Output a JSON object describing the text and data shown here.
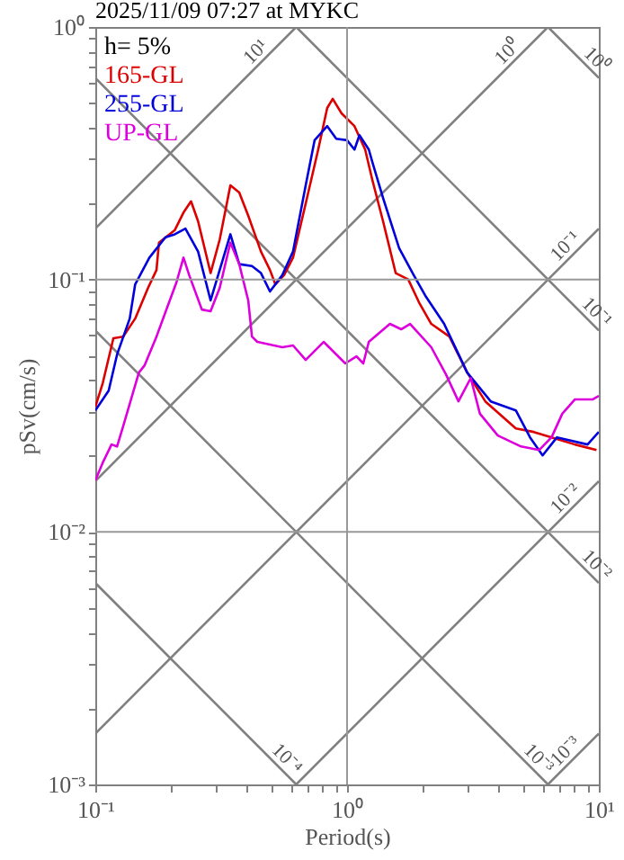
{
  "chart_data": {
    "type": "line",
    "title": "2025/11/09 07:27 at MYKC",
    "xlabel": "Period(s)",
    "ylabel": "pSv(cm/s)",
    "log": "xy",
    "grid": true,
    "legend": "top left",
    "xlim": [
      0.1,
      10
    ],
    "ylim": [
      0.001,
      1
    ],
    "xticks": [
      {
        "value": 0.1,
        "label": "10⁻¹"
      },
      {
        "value": 0.2,
        "label": null
      },
      {
        "value": 0.3,
        "label": null
      },
      {
        "value": 0.4,
        "label": null
      },
      {
        "value": 0.5,
        "label": null
      },
      {
        "value": 0.6,
        "label": null
      },
      {
        "value": 0.7,
        "label": null
      },
      {
        "value": 0.8,
        "label": null
      },
      {
        "value": 0.9,
        "label": null
      },
      {
        "value": 1,
        "label": "10⁰"
      },
      {
        "value": 2,
        "label": null
      },
      {
        "value": 3,
        "label": null
      },
      {
        "value": 4,
        "label": null
      },
      {
        "value": 5,
        "label": null
      },
      {
        "value": 6,
        "label": null
      },
      {
        "value": 7,
        "label": null
      },
      {
        "value": 8,
        "label": null
      },
      {
        "value": 9,
        "label": null
      },
      {
        "value": 10,
        "label": "10¹"
      }
    ],
    "yticks": [
      {
        "value": 0.001,
        "label": "10⁻³"
      },
      {
        "value": 0.002,
        "label": null
      },
      {
        "value": 0.003,
        "label": null
      },
      {
        "value": 0.004,
        "label": null
      },
      {
        "value": 0.005,
        "label": null
      },
      {
        "value": 0.006,
        "label": null
      },
      {
        "value": 0.007,
        "label": null
      },
      {
        "value": 0.008,
        "label": null
      },
      {
        "value": 0.009,
        "label": null
      },
      {
        "value": 0.01,
        "label": "10⁻²"
      },
      {
        "value": 0.02,
        "label": null
      },
      {
        "value": 0.03,
        "label": null
      },
      {
        "value": 0.04,
        "label": null
      },
      {
        "value": 0.05,
        "label": null
      },
      {
        "value": 0.06,
        "label": null
      },
      {
        "value": 0.07,
        "label": null
      },
      {
        "value": 0.08,
        "label": null
      },
      {
        "value": 0.09,
        "label": null
      },
      {
        "value": 0.1,
        "label": "10⁻¹"
      },
      {
        "value": 0.2,
        "label": null
      },
      {
        "value": 0.3,
        "label": null
      },
      {
        "value": 0.4,
        "label": null
      },
      {
        "value": 0.5,
        "label": null
      },
      {
        "value": 0.6,
        "label": null
      },
      {
        "value": 0.7,
        "label": null
      },
      {
        "value": 0.8,
        "label": null
      },
      {
        "value": 0.9,
        "label": null
      },
      {
        "value": 1,
        "label": "10⁰"
      }
    ],
    "series": [
      {
        "color": "#808080",
        "x": [
          0.1,
          0.628
        ],
        "values": [
          0.159,
          1
        ]
      },
      {
        "color": "#808080",
        "x": [
          0.1,
          6.28
        ],
        "values": [
          0.0159,
          1
        ]
      },
      {
        "color": "#808080",
        "x": [
          0.1,
          10
        ],
        "values": [
          0.00159,
          0.159
        ]
      },
      {
        "color": "#808080",
        "x": [
          0.628,
          10
        ],
        "values": [
          0.001,
          0.0159
        ]
      },
      {
        "color": "#808080",
        "x": [
          6.28,
          10
        ],
        "values": [
          0.001,
          0.00159
        ]
      },
      {
        "color": "#808080",
        "x": [
          6.28,
          10
        ],
        "values": [
          1,
          0.628
        ]
      },
      {
        "color": "#808080",
        "x": [
          0.628,
          10
        ],
        "values": [
          1,
          0.0628
        ]
      },
      {
        "color": "#808080",
        "x": [
          0.1,
          10
        ],
        "values": [
          0.628,
          0.00628
        ]
      },
      {
        "color": "#808080",
        "x": [
          0.1,
          6.28
        ],
        "values": [
          0.0628,
          0.001
        ]
      },
      {
        "color": "#808080",
        "x": [
          0.1,
          0.628
        ],
        "values": [
          0.00628,
          0.001
        ]
      },
      {
        "name": "165-GL",
        "color": "#dd0000",
        "x": [
          0.1,
          0.107,
          0.118,
          0.129,
          0.144,
          0.162,
          0.175,
          0.179,
          0.207,
          0.224,
          0.24,
          0.256,
          0.287,
          0.312,
          0.344,
          0.373,
          0.405,
          0.455,
          0.494,
          0.519,
          0.562,
          0.61,
          0.685,
          0.768,
          0.834,
          0.877,
          0.951,
          1.07,
          1.18,
          1.26,
          1.39,
          1.56,
          1.75,
          1.93,
          2.16,
          2.55,
          3.0,
          3.54,
          4.68,
          5.51,
          6.49,
          8.04,
          9.79
        ],
        "values": [
          0.0313,
          0.0388,
          0.0585,
          0.0594,
          0.07,
          0.0926,
          0.109,
          0.14,
          0.157,
          0.184,
          0.204,
          0.17,
          0.106,
          0.144,
          0.236,
          0.221,
          0.179,
          0.129,
          0.109,
          0.0957,
          0.104,
          0.122,
          0.2,
          0.327,
          0.478,
          0.519,
          0.455,
          0.405,
          0.327,
          0.248,
          0.17,
          0.106,
          0.1,
          0.0812,
          0.0667,
          0.0594,
          0.0428,
          0.0329,
          0.0257,
          0.0249,
          0.0237,
          0.0222,
          0.0211
        ]
      },
      {
        "name": "255-GL",
        "color": "#0000dd",
        "x": [
          0.1,
          0.113,
          0.122,
          0.137,
          0.144,
          0.164,
          0.19,
          0.207,
          0.228,
          0.256,
          0.287,
          0.317,
          0.344,
          0.373,
          0.419,
          0.455,
          0.494,
          0.553,
          0.61,
          0.685,
          0.743,
          0.834,
          0.906,
          1.0,
          1.07,
          1.12,
          1.22,
          1.26,
          1.39,
          1.61,
          1.84,
          2.06,
          2.43,
          3.0,
          3.72,
          4.68,
          5.33,
          5.98,
          6.82,
          9.02,
          10.0
        ],
        "values": [
          0.0303,
          0.0363,
          0.0504,
          0.07,
          0.0957,
          0.122,
          0.147,
          0.151,
          0.159,
          0.129,
          0.0826,
          0.115,
          0.151,
          0.115,
          0.113,
          0.106,
          0.0896,
          0.104,
          0.129,
          0.236,
          0.356,
          0.405,
          0.361,
          0.356,
          0.327,
          0.373,
          0.327,
          0.292,
          0.21,
          0.133,
          0.104,
          0.0853,
          0.0667,
          0.0428,
          0.0329,
          0.0303,
          0.0237,
          0.0201,
          0.0237,
          0.0222,
          0.0249
        ]
      },
      {
        "name": "UP-GL",
        "color": "#dd00dd",
        "x": [
          0.1,
          0.107,
          0.116,
          0.122,
          0.129,
          0.149,
          0.157,
          0.175,
          0.194,
          0.21,
          0.224,
          0.236,
          0.265,
          0.287,
          0.312,
          0.344,
          0.373,
          0.405,
          0.419,
          0.44,
          0.553,
          0.61,
          0.685,
          0.807,
          0.984,
          1.09,
          1.16,
          1.22,
          1.48,
          1.64,
          1.78,
          2.16,
          2.47,
          2.77,
          3.1,
          3.37,
          3.97,
          4.91,
          5.79,
          6.49,
          7.16,
          8.04,
          9.47,
          10.0
        ],
        "values": [
          0.016,
          0.0188,
          0.0222,
          0.0218,
          0.0262,
          0.0428,
          0.0457,
          0.0594,
          0.0786,
          0.0973,
          0.122,
          0.104,
          0.076,
          0.0748,
          0.0926,
          0.14,
          0.115,
          0.0826,
          0.0594,
          0.0566,
          0.0539,
          0.0548,
          0.048,
          0.0566,
          0.0465,
          0.0496,
          0.0465,
          0.0566,
          0.0667,
          0.0635,
          0.0667,
          0.0539,
          0.0421,
          0.0329,
          0.0407,
          0.0294,
          0.0241,
          0.0218,
          0.0211,
          0.0237,
          0.0294,
          0.0335,
          0.0335,
          0.0346
        ]
      }
    ],
    "annotations": [
      "h= 5%",
      {
        "text": "10¹",
        "x": 0.5,
        "y": 0.796
      },
      {
        "text": "10⁰",
        "x": 5,
        "y": 0.796
      },
      {
        "text": "10⁰",
        "x": 8.5,
        "y": 0.739
      },
      {
        "text": "10⁻¹",
        "x": 8.5,
        "y": 0.135
      },
      {
        "text": "10⁻¹",
        "x": 8.5,
        "y": 0.0739
      },
      {
        "text": "10⁻²",
        "x": 8.5,
        "y": 0.0135
      },
      {
        "text": "10⁻²",
        "x": 8.5,
        "y": 0.00739
      },
      {
        "text": "10⁻⁴",
        "x": 0.5,
        "y": 0.00126
      },
      {
        "text": "10⁻³",
        "x": 5,
        "y": 0.00126
      },
      {
        "text": "10⁻³",
        "x": 8.5,
        "y": 0.00135
      }
    ]
  }
}
